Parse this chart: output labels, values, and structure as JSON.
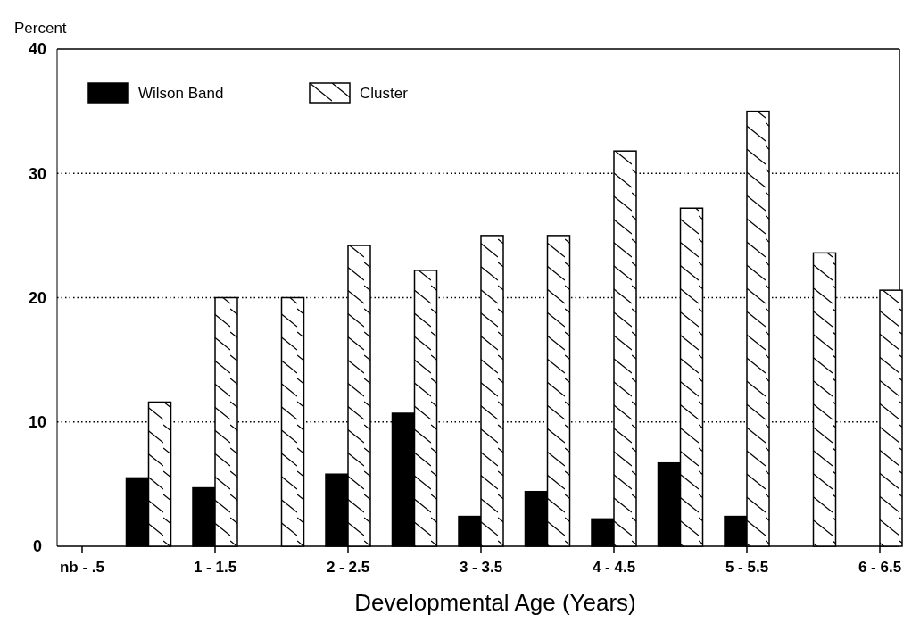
{
  "chart_data": {
    "type": "bar",
    "ylabel": "Percent",
    "xlabel": "Developmental Age (Years)",
    "categories": [
      "nb - .5",
      null,
      "1 - 1.5",
      null,
      "2 - 2.5",
      null,
      "3 - 3.5",
      null,
      "4 - 4.5",
      null,
      "5 - 5.5",
      null,
      "6 - 6.5"
    ],
    "series": [
      {
        "name": "Wilson Band",
        "color": "#000000",
        "values": [
          null,
          5.5,
          4.7,
          null,
          5.8,
          10.7,
          2.4,
          4.4,
          2.2,
          6.7,
          2.4,
          null,
          null
        ]
      },
      {
        "name": "Cluster",
        "color": "#ffffff",
        "values": [
          null,
          11.6,
          20.0,
          20.0,
          24.2,
          22.2,
          25.0,
          25.0,
          31.8,
          27.2,
          35.0,
          23.6,
          20.6
        ]
      }
    ],
    "ylim": [
      0,
      40
    ],
    "yticks": [
      0,
      10,
      20,
      30,
      40
    ],
    "grid": "y",
    "legend": "top left"
  }
}
